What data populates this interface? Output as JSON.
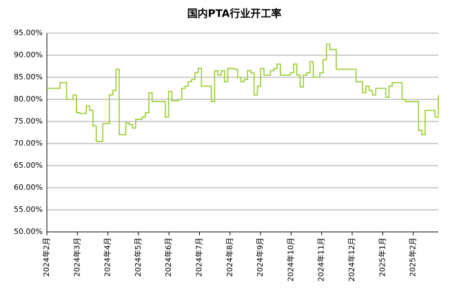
{
  "chart_data": {
    "type": "line",
    "title": "国内PTA行业开工率",
    "x_labels": [
      "2024年2月",
      "2024年3月",
      "2024年4月",
      "2024年5月",
      "2024年6月",
      "2024年7月",
      "2024年8月",
      "2024年9月",
      "2024年10月",
      "2024年11月",
      "2024年12月",
      "2025年1月",
      "2025年2月"
    ],
    "series": [
      {
        "color": "#9acd32",
        "values": [
          82.5,
          82.5,
          82.5,
          82.5,
          83.8,
          83.8,
          80,
          80,
          81,
          77,
          76.8,
          76.8,
          78.5,
          77.5,
          74,
          70.5,
          70.5,
          74.5,
          74.5,
          81,
          82,
          86.8,
          72,
          72,
          74.7,
          74.3,
          73.5,
          75.5,
          75.5,
          76,
          77,
          81.5,
          79.5,
          79.5,
          79.5,
          79.5,
          76,
          81.8,
          79.7,
          79.7,
          80,
          82.5,
          83,
          84,
          84.5,
          86,
          87,
          83,
          83,
          83,
          79.5,
          86.5,
          85.5,
          86.5,
          84,
          87,
          87,
          86.8,
          85,
          84,
          84.5,
          86.5,
          86,
          81,
          83,
          87,
          85.5,
          85.5,
          86.5,
          87,
          88,
          85.5,
          85.5,
          85.5,
          86,
          88,
          85.5,
          82.8,
          85.5,
          86,
          88.5,
          85,
          85,
          86,
          89,
          92.5,
          91.3,
          91.3,
          86.8,
          86.8,
          86.8,
          86.8,
          86.8,
          86.8,
          84,
          84,
          81.5,
          83,
          82,
          81,
          82.5,
          82.5,
          82.5,
          80.5,
          83,
          83.8,
          83.8,
          83.8,
          80,
          79.5,
          79.5,
          79.5,
          79.5,
          73,
          72,
          77.5,
          77.5,
          77.5,
          76,
          81
        ]
      }
    ],
    "ylim": [
      50,
      95
    ],
    "yticks": [
      {
        "value": 50,
        "label": "50.00%"
      },
      {
        "value": 55,
        "label": "55.00%"
      },
      {
        "value": 60,
        "label": "60.00%"
      },
      {
        "value": 65,
        "label": "65.00%"
      },
      {
        "value": 70,
        "label": "70.00%"
      },
      {
        "value": 75,
        "label": "75.00%"
      },
      {
        "value": 80,
        "label": "80.00%"
      },
      {
        "value": 85,
        "label": "85.00%"
      },
      {
        "value": 90,
        "label": "90.00%"
      },
      {
        "value": 95,
        "label": "95.00%"
      }
    ],
    "grid": true
  }
}
